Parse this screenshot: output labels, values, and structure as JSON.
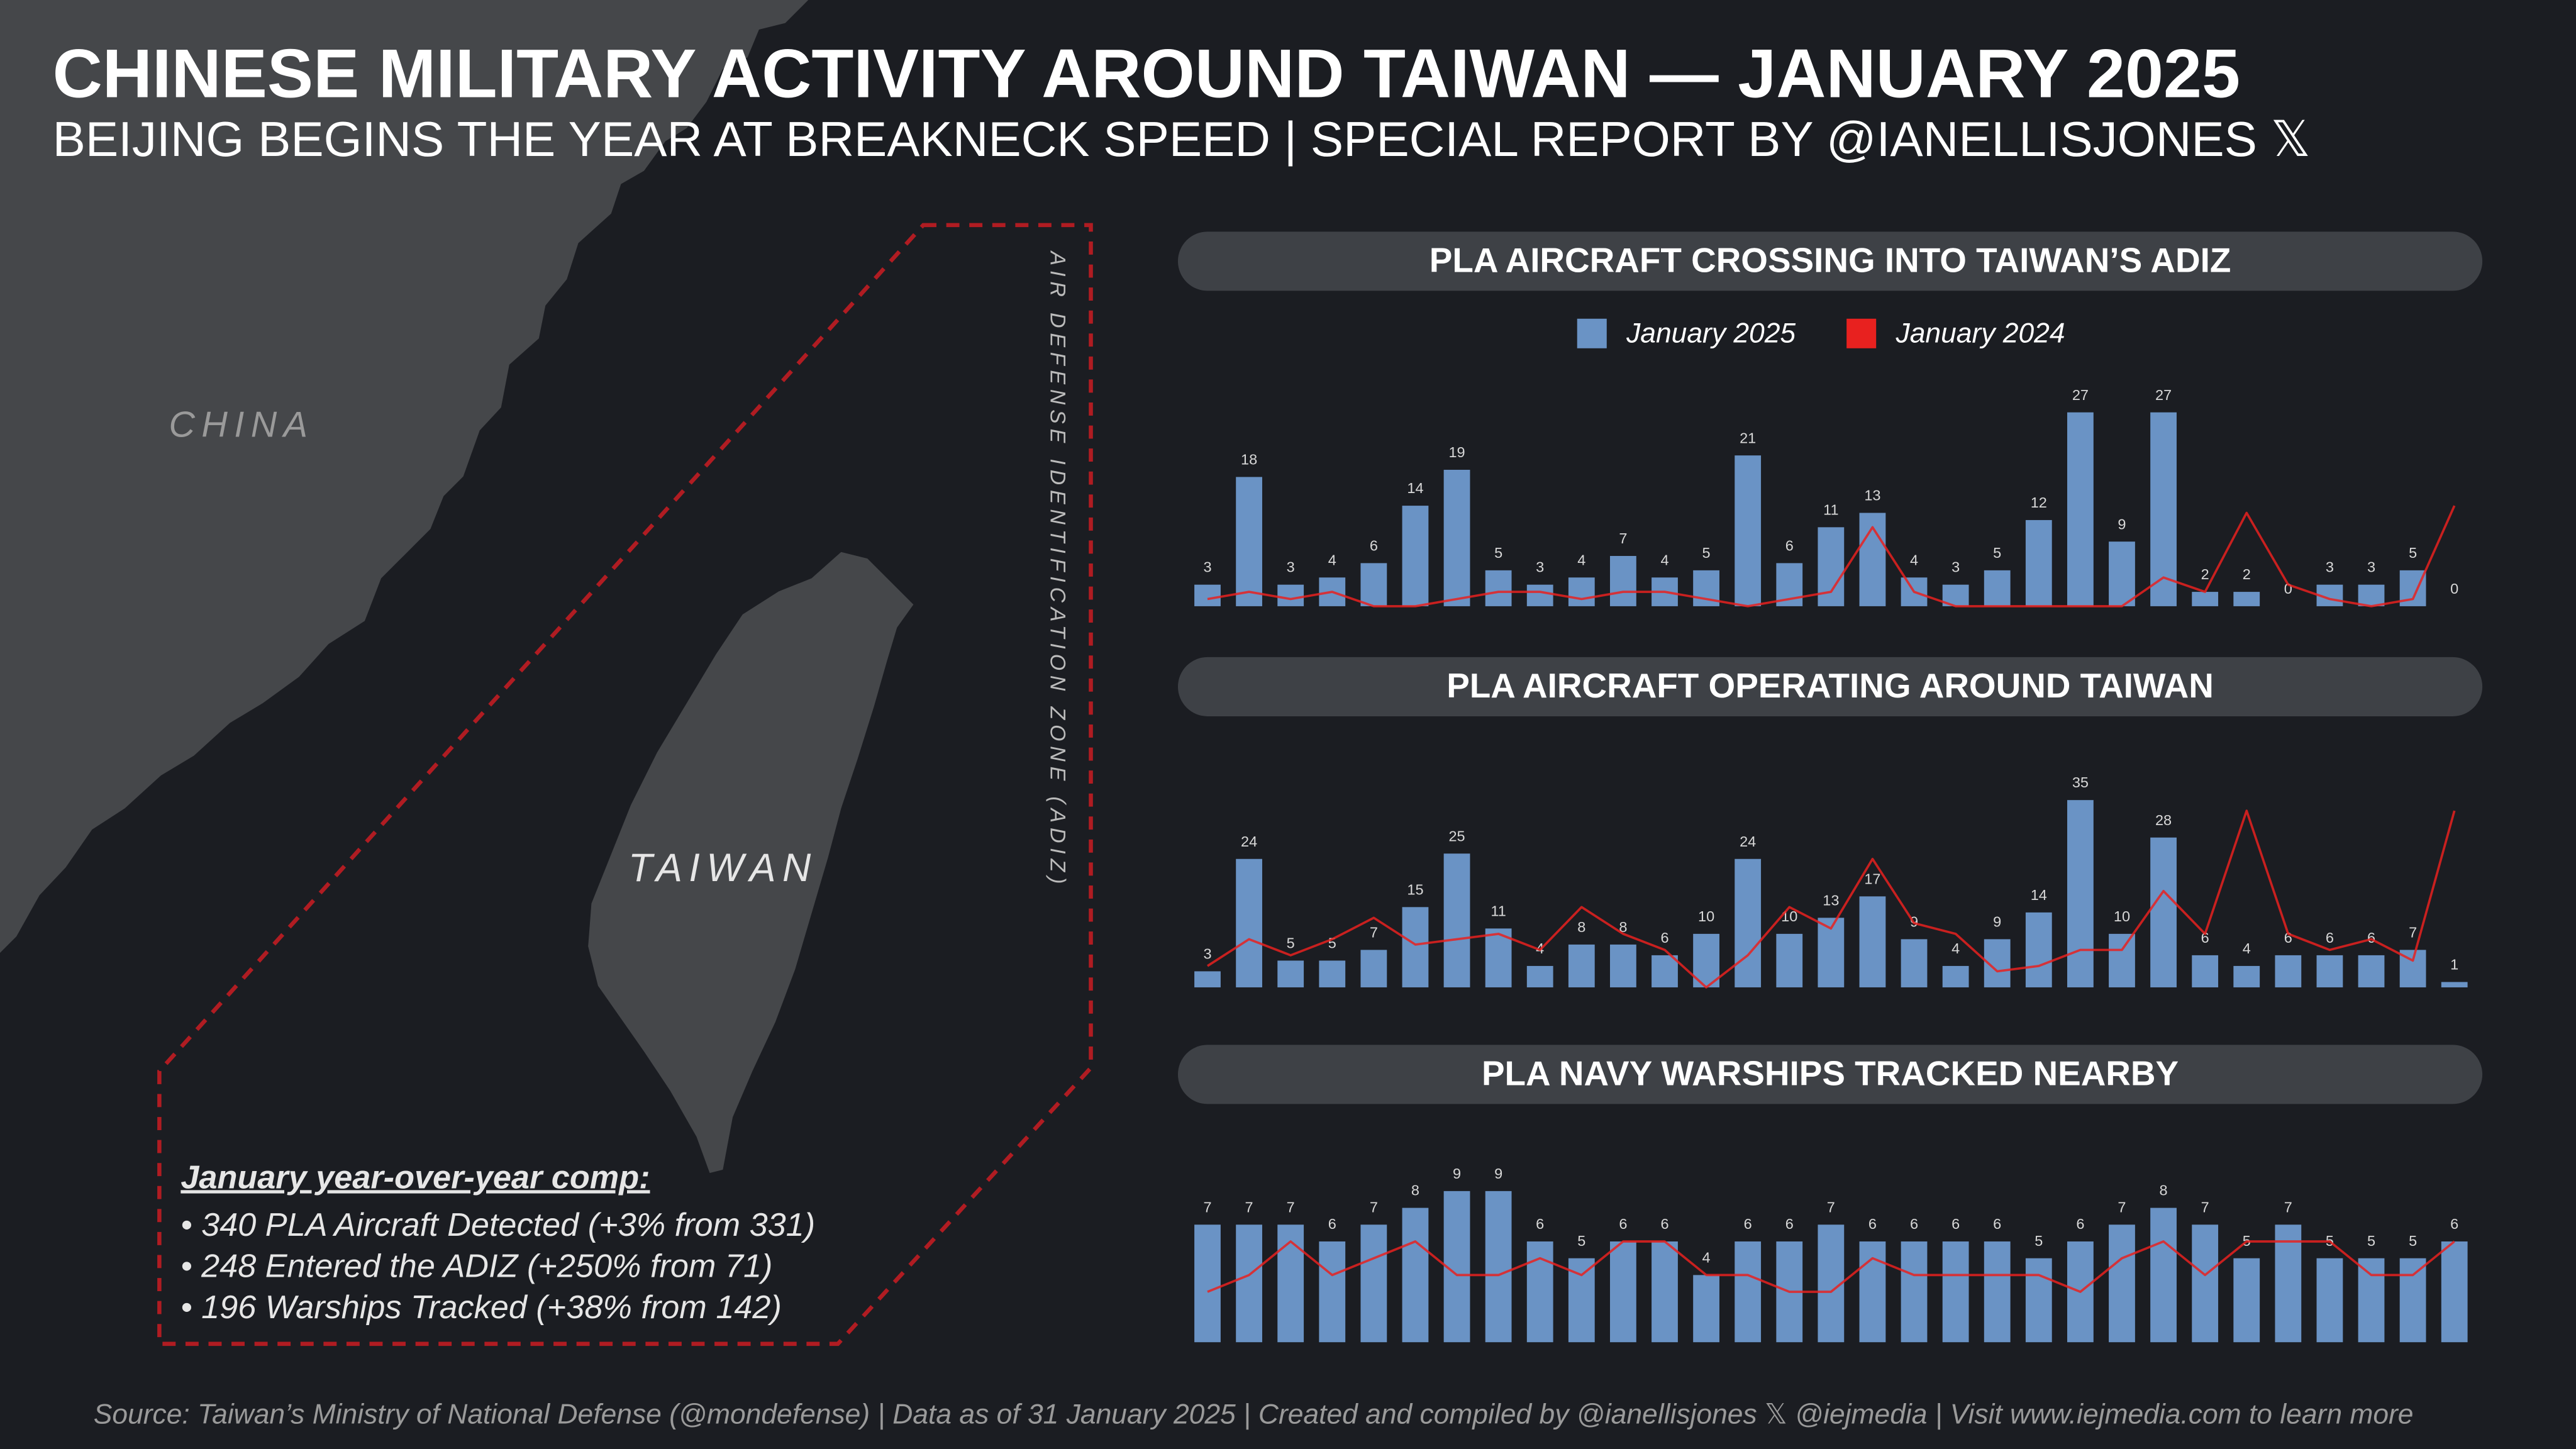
{
  "title": "CHINESE MILITARY ACTIVITY AROUND TAIWAN — JANUARY 2025",
  "subtitle": "BEIJING BEGINS THE YEAR AT BREAKNECK SPEED | SPECIAL REPORT BY @IANELLISJONES 𝕏",
  "map": {
    "china": "CHINA",
    "taiwan": "TAIWAN",
    "zone": "AIR DEFENSE IDENTIFICATION ZONE (ADIZ)"
  },
  "comparison": {
    "heading": "January year-over-year comp:",
    "items": [
      "• 340 PLA Aircraft Detected (+3% from 331)",
      "• 248 Entered the ADIZ (+250% from 71)",
      "• 196 Warships Tracked (+38% from 142)"
    ]
  },
  "source": "Source: Taiwan’s Ministry of National Defense (@mondefense) | Data as of 31 January 2025 | Created and compiled by @ianellisjones 𝕏 @iejmedia | Visit www.iejmedia.com to learn more",
  "chart_data": [
    {
      "type": "bar",
      "title": "PLA AIRCRAFT CROSSING INTO TAIWAN’S ADIZ",
      "series": [
        {
          "name": "January 2025",
          "color": "#6a93c5",
          "values": [
            3,
            18,
            3,
            4,
            6,
            14,
            19,
            5,
            3,
            4,
            7,
            4,
            5,
            21,
            6,
            11,
            13,
            4,
            3,
            5,
            12,
            27,
            9,
            27,
            2,
            2,
            0,
            3,
            3,
            5,
            0
          ]
        },
        {
          "name": "January 2024",
          "color": "#e8211f",
          "type": "line",
          "values": [
            1,
            2,
            1,
            2,
            0,
            0,
            1,
            2,
            2,
            1,
            2,
            2,
            1,
            0,
            1,
            2,
            11,
            2,
            0,
            0,
            0,
            0,
            0,
            4,
            2,
            13,
            3,
            1,
            0,
            1,
            14
          ]
        }
      ]
    },
    {
      "type": "bar",
      "title": "PLA AIRCRAFT OPERATING AROUND TAIWAN",
      "series": [
        {
          "color": "#6a93c5",
          "values": [
            3,
            24,
            5,
            5,
            7,
            15,
            25,
            11,
            4,
            8,
            8,
            6,
            10,
            24,
            10,
            13,
            17,
            9,
            4,
            9,
            14,
            35,
            10,
            28,
            6,
            4,
            6,
            6,
            6,
            7,
            1
          ]
        },
        {
          "color": "#e8211f",
          "type": "line",
          "values": [
            4,
            9,
            6,
            9,
            13,
            8,
            9,
            10,
            7,
            15,
            10,
            7,
            0,
            6,
            15,
            11,
            24,
            12,
            10,
            3,
            4,
            7,
            7,
            18,
            10,
            33,
            10,
            7,
            9,
            5,
            33
          ]
        }
      ]
    },
    {
      "type": "bar",
      "title": "PLA NAVY WARSHIPS TRACKED NEARBY",
      "series": [
        {
          "color": "#6a93c5",
          "values": [
            7,
            7,
            7,
            6,
            7,
            8,
            9,
            9,
            6,
            5,
            6,
            6,
            4,
            6,
            6,
            7,
            6,
            6,
            6,
            6,
            5,
            6,
            7,
            8,
            7,
            5,
            7,
            5,
            5,
            5,
            6
          ]
        },
        {
          "color": "#e8211f",
          "type": "line",
          "values": [
            3,
            4,
            6,
            4,
            5,
            6,
            4,
            4,
            5,
            4,
            6,
            6,
            4,
            4,
            3,
            3,
            5,
            4,
            4,
            4,
            4,
            3,
            5,
            6,
            4,
            6,
            6,
            6,
            4,
            4,
            6
          ]
        }
      ]
    }
  ]
}
